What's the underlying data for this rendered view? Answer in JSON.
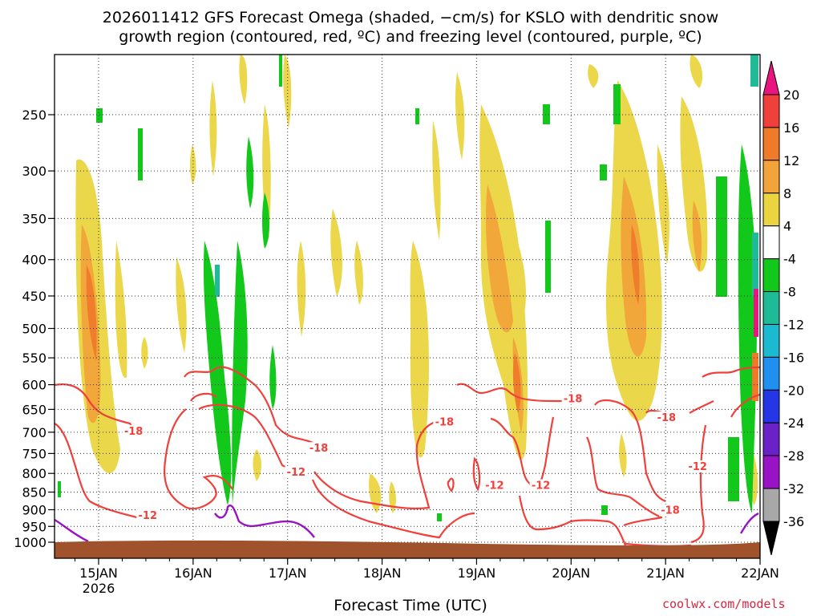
{
  "chart_data": {
    "type": "heatmap",
    "title_line1": "2026011412 GFS Forecast Omega (shaded, −cm/s) for KSLO with dendritic snow",
    "title_line2": "growth region (contoured, red, ºC) and freezing level (contoured, purple, ºC)",
    "xlabel": "Forecast Time (UTC)",
    "ylabel": "",
    "x_tick_labels": [
      "15JAN",
      "16JAN",
      "17JAN",
      "18JAN",
      "19JAN",
      "20JAN",
      "21JAN",
      "22JAN"
    ],
    "x_sub_label": "2026",
    "y_tick_labels": [
      250,
      300,
      350,
      400,
      450,
      500,
      550,
      600,
      650,
      700,
      750,
      800,
      850,
      900,
      950,
      1000
    ],
    "y_scale": "log-pressure",
    "grid": true,
    "colorbar": {
      "tick_labels": [
        20,
        16,
        12,
        8,
        4,
        -4,
        -8,
        -12,
        -16,
        -20,
        -24,
        -28,
        -32,
        -36
      ],
      "colors": [
        "#e8177f",
        "#f0403c",
        "#ee7a2a",
        "#f2a43a",
        "#ead540",
        "#ffffff",
        "#12c81a",
        "#1fba96",
        "#1bbad0",
        "#1f8ff0",
        "#2436e6",
        "#6a22c8",
        "#9a12c6",
        "#a8a8a8",
        "#000000"
      ]
    },
    "contour_labels": {
      "dendritic": [
        {
          "text": "-18",
          "x_day": 15.37,
          "p": 700
        },
        {
          "text": "-12",
          "x_day": 15.52,
          "p": 920
        },
        {
          "text": "-12",
          "x_day": 17.09,
          "p": 800
        },
        {
          "text": "-18",
          "x_day": 17.33,
          "p": 740
        },
        {
          "text": "-18",
          "x_day": 18.66,
          "p": 680
        },
        {
          "text": "-12",
          "x_day": 19.19,
          "p": 835
        },
        {
          "text": "-12",
          "x_day": 19.68,
          "p": 835
        },
        {
          "text": "-18",
          "x_day": 20.02,
          "p": 630
        },
        {
          "text": "-18",
          "x_day": 21.01,
          "p": 670
        },
        {
          "text": "-12",
          "x_day": 21.34,
          "p": 785
        },
        {
          "text": "-18",
          "x_day": 21.05,
          "p": 905
        }
      ]
    },
    "series": [
      {
        "kind": "updraft",
        "points": [
          {
            "x_day": 14.92,
            "p": 470,
            "v": 14
          },
          {
            "x_day": 15.0,
            "p": 500,
            "v": 10
          },
          {
            "x_day": 19.18,
            "p": 380,
            "v": 8
          },
          {
            "x_day": 19.4,
            "p": 580,
            "v": 12
          },
          {
            "x_day": 20.7,
            "p": 400,
            "v": 12
          },
          {
            "x_day": 20.63,
            "p": 300,
            "v": 8
          },
          {
            "x_day": 21.3,
            "p": 380,
            "v": 8
          }
        ]
      }
    ]
  },
  "credit": "coolwx.com/models"
}
